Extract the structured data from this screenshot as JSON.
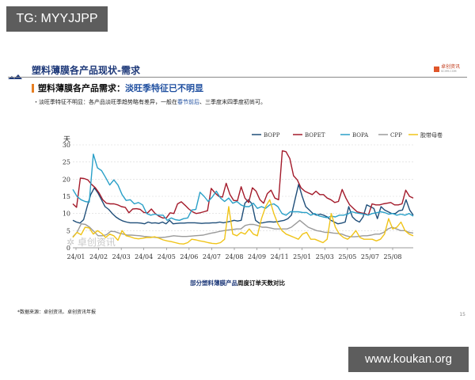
{
  "overlay": {
    "tg_badge": "TG: MYYJJPP",
    "watermark_site": "www.koukan.org"
  },
  "header": {
    "page_title": "塑料薄膜各产品现状-需求",
    "logo_text": "卓创资讯",
    "logo_sub": "SCI99.COM"
  },
  "section": {
    "title_prefix": "塑料薄膜各产品需求：",
    "title_highlight": "淡旺季特征已不明显",
    "bullet_prefix": "・淡旺季特征不明显：各产品淡旺季趋势略有差异，一般在",
    "bullet_highlight": "春节前后",
    "bullet_suffix": "、三季度末四季度初尚可。"
  },
  "chart_watermark": "卓创资讯",
  "caption": {
    "highlight": "部分塑料薄膜产品",
    "rest": "周度订单天数对比"
  },
  "footer": {
    "source": "*数据来源：卓创资讯、卓创资讯年报",
    "page_number": "15"
  },
  "chart_data": {
    "type": "line",
    "title": "部分塑料薄膜产品周度订单天数对比",
    "ylabel": "天",
    "xlabel": "",
    "ylim": [
      0,
      30
    ],
    "yticks": [
      0,
      5,
      10,
      15,
      20,
      25,
      30
    ],
    "grid": "horizontal dashed",
    "legend_position": "top-right",
    "x_tick_labels": [
      "24/01",
      "24/02",
      "24/03",
      "24/04",
      "24/05",
      "24/06",
      "24/07",
      "24/08",
      "24/09",
      "24/11",
      "25/01",
      "25/03",
      "25/05",
      "25/07",
      "25/08"
    ],
    "series": [
      {
        "name": "BOPP",
        "color": "#1f4e79",
        "values": [
          8,
          7.5,
          7.2,
          8.2,
          12,
          15.5,
          17.5,
          16,
          14,
          12,
          11.2,
          10,
          9,
          8.3,
          7.8,
          7.5,
          7.3,
          7.3,
          7.3,
          7.2,
          7,
          7.5,
          7.2,
          7.3,
          7.1,
          7.5,
          7,
          8,
          7,
          7.1,
          7.2,
          7.2,
          7.3,
          7.3,
          7.3,
          7.2,
          7.1,
          7.2,
          7.2,
          7.3,
          7.3,
          7.5,
          7.3,
          7.5,
          7.7,
          8,
          7.8,
          8,
          13,
          14,
          12.8,
          8,
          7.2,
          7.3,
          7.5,
          7.6,
          7.5,
          7.6,
          7.8,
          8,
          8.5,
          9.5,
          14,
          18.5,
          15,
          12,
          11,
          10,
          9.5,
          9.8,
          9.5,
          9,
          8,
          7.5,
          7,
          7.2,
          7.5,
          12,
          9,
          8,
          7.5,
          9,
          12.5,
          12,
          11.5,
          8.5,
          12,
          11,
          10.5,
          10,
          10,
          10.8,
          11,
          14,
          11,
          9.5
        ]
      },
      {
        "name": "BOPET",
        "color": "#a31a2a",
        "values": [
          12.8,
          11.8,
          20.3,
          20.2,
          19.8,
          18.5,
          17.5,
          16,
          14,
          13,
          12.8,
          12.8,
          12.5,
          12,
          11.8,
          10.2,
          11.3,
          11.4,
          11.2,
          10.3,
          10.2,
          11.3,
          10,
          9.2,
          8.7,
          8.7,
          10.2,
          10,
          12.8,
          13.4,
          12.4,
          11.3,
          10.5,
          10,
          10.2,
          10.5,
          10.8,
          17.3,
          16,
          15,
          14.8,
          18.8,
          15.5,
          13.8,
          13.7,
          17.8,
          14.5,
          13.2,
          17.5,
          16.5,
          14,
          13,
          15.8,
          16.8,
          14.5,
          14,
          28.3,
          28,
          26,
          21,
          19.8,
          17.5,
          16.5,
          16,
          15.5,
          16.5,
          15.5,
          15.5,
          14.5,
          14,
          13.2,
          13.5,
          17,
          14.5,
          12.5,
          11.5,
          10.5,
          10.2,
          10,
          9.5,
          12.8,
          12.5,
          12.5,
          12.8,
          13,
          13.2,
          12.5,
          12.5,
          12.8,
          16.8,
          15,
          14.5
        ]
      },
      {
        "name": "BOPA",
        "color": "#2aa0c8",
        "values": [
          17,
          15,
          14,
          13.5,
          13.3,
          27.3,
          23.3,
          22.5,
          20.5,
          18.3,
          19.8,
          18.3,
          15.5,
          13.8,
          14,
          12.8,
          13.2,
          12.5,
          10,
          9.5,
          9.8,
          9.5,
          9.5,
          8,
          8.7,
          8.2,
          8,
          8.5,
          8.7,
          11,
          11.2,
          16.2,
          15,
          13.5,
          14.8,
          16.5,
          14.5,
          13.5,
          14.5,
          13,
          13.5,
          12.5,
          12,
          12,
          13,
          11.5,
          12,
          11.5,
          12.5,
          12.8,
          12,
          10,
          9.5,
          10.5,
          10.5,
          10.5,
          10.3,
          10.3,
          9.5,
          10,
          9.3,
          9,
          8.8,
          9.2,
          9,
          9.5,
          9.5,
          9.8,
          10.5,
          10.2,
          10,
          9.8,
          9.5,
          10,
          10.2,
          10.5,
          10.3,
          9.8,
          10,
          9.5,
          9.8,
          9.5,
          10,
          9.2
        ]
      },
      {
        "name": "CPP",
        "color": "#9a9a9a",
        "values": [
          3.2,
          4.5,
          7,
          6.8,
          6,
          4.8,
          3.5,
          3.5,
          3.8,
          4.8,
          4.7,
          4.3,
          4,
          3.7,
          3.7,
          3.6,
          3.5,
          3.3,
          3.2,
          3.1,
          3,
          3,
          3.1,
          3.3,
          3.5,
          3.4,
          3.3,
          3.3,
          3.4,
          3.5,
          3.6,
          3.7,
          4,
          4.3,
          4.5,
          4.8,
          5,
          5.2,
          5.3,
          5.5,
          5.5,
          6.5,
          6.8,
          6.8,
          6.5,
          6,
          6,
          5.8,
          5.5,
          5.5,
          5.5,
          5.5,
          6,
          7,
          8,
          7,
          6,
          5.5,
          5,
          4.8,
          4.5,
          4.5,
          4.3,
          4.2,
          4,
          3.5,
          3.2,
          3.2,
          3.3,
          3.5,
          3.5,
          3.7,
          4,
          4,
          4.5,
          5.5,
          6,
          5.5,
          5,
          5,
          4.5,
          4.3
        ]
      },
      {
        "name": "胶带母卷",
        "color": "#f0c419",
        "values": [
          3,
          4.5,
          3.8,
          6,
          5.8,
          4,
          5,
          4.2,
          3,
          4,
          3.5,
          2.2,
          5,
          3.5,
          3.2,
          2.8,
          2.6,
          2.8,
          3,
          3,
          3.2,
          2.8,
          2.3,
          2,
          1.8,
          1.5,
          1.2,
          1.1,
          1.5,
          2.5,
          2.3,
          2,
          1.8,
          1.5,
          1.3,
          1.2,
          1.5,
          2.5,
          12,
          4,
          3.5,
          4.5,
          4,
          5.5,
          4,
          3.5,
          8.5,
          12,
          14,
          10,
          7,
          5,
          4,
          3.5,
          3,
          2.5,
          4,
          4.5,
          2.5,
          2.5,
          2,
          1.5,
          2.5,
          10,
          6,
          4,
          3,
          2.5,
          3.5,
          5,
          3,
          2.5,
          2.5,
          2.5,
          2,
          2.5,
          4,
          8.5,
          5.5,
          6,
          7.5,
          5,
          4,
          3.5
        ]
      }
    ]
  }
}
